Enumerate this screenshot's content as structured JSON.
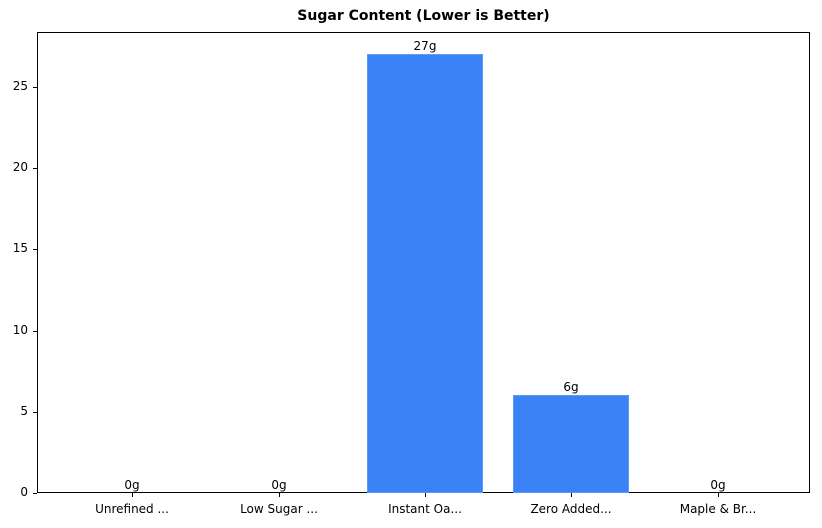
{
  "chart_data": {
    "type": "bar",
    "title": "Sugar Content (Lower is Better)",
    "xlabel": "",
    "ylabel": "",
    "categories": [
      "Unrefined ...",
      "Low Sugar ...",
      "Instant Oa...",
      "Zero Added...",
      "Maple & Br..."
    ],
    "values": [
      0,
      0,
      27,
      6,
      0
    ],
    "value_labels": [
      "0g",
      "0g",
      "27g",
      "6g",
      "0g"
    ],
    "ylim": [
      0,
      28.35
    ],
    "yticks": [
      0,
      5,
      10,
      15,
      20,
      25
    ],
    "grid": false,
    "legend": null,
    "bar_color": "#3b82f6"
  },
  "yticks_labels": [
    "0",
    "5",
    "10",
    "15",
    "20",
    "25"
  ]
}
